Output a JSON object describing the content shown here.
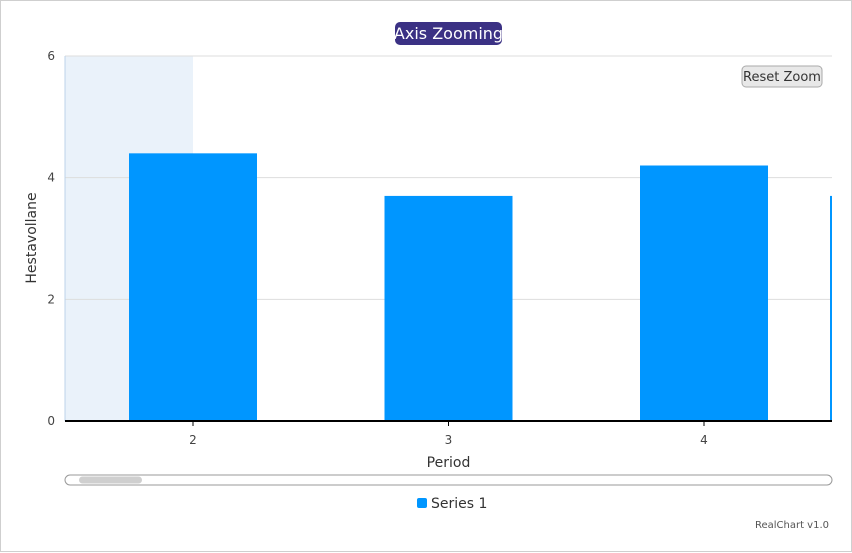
{
  "chart_data": {
    "type": "bar",
    "title": "Axis Zooming",
    "xlabel": "Period",
    "ylabel": "Hestavollane",
    "categories": [
      "2",
      "3",
      "4"
    ],
    "series": [
      {
        "name": "Series 1",
        "values": [
          4.4,
          3.7,
          4.2
        ]
      }
    ],
    "partial_next_value": 3.7,
    "ylim": [
      0,
      6
    ],
    "yticks": [
      0,
      2,
      4,
      6
    ],
    "grid": true,
    "legend": "bottom-center",
    "colors": {
      "bar": "#0096ff",
      "title_bg": "#3b3184",
      "highlight": "#eaf2fa",
      "axis": "#000000",
      "grid": "#dddddd"
    }
  },
  "ui": {
    "reset_zoom_label": "Reset Zoom",
    "credits": "RealChart v1.0",
    "legend_label": "Series 1"
  }
}
